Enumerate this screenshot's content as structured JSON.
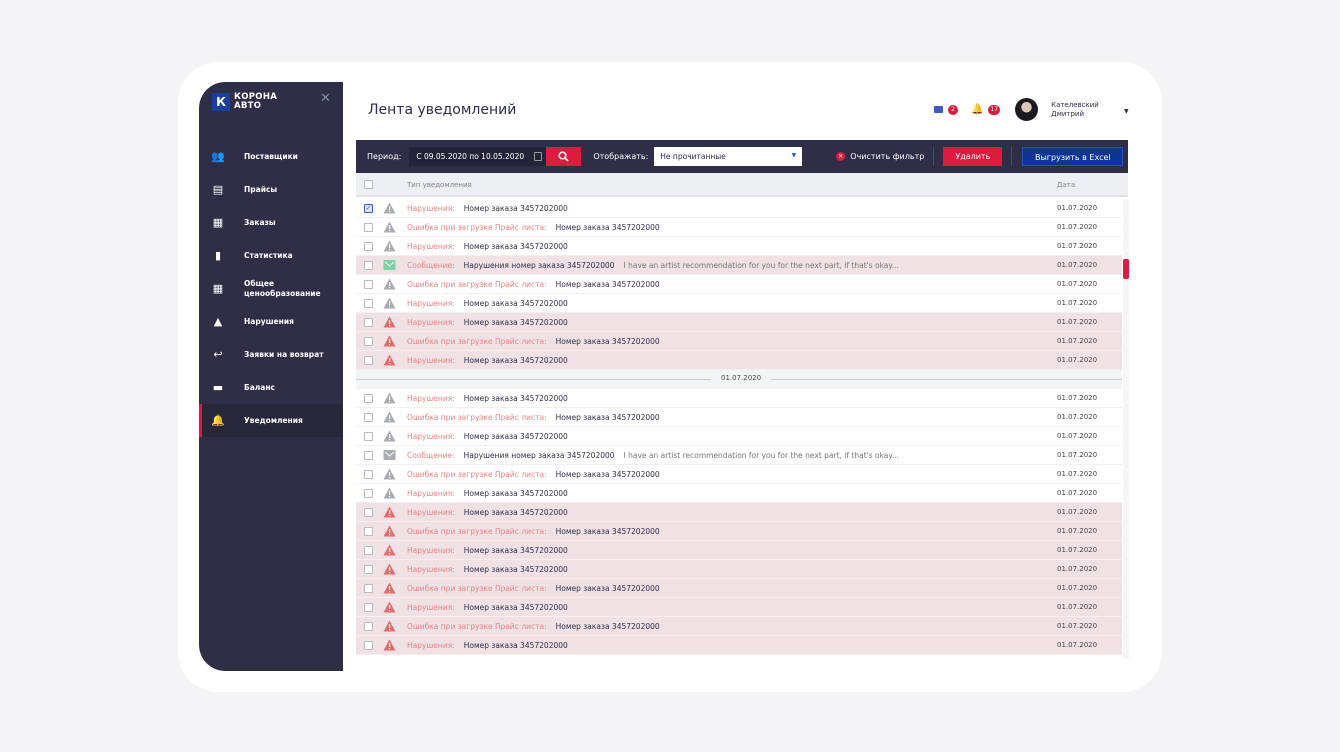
{
  "brand": {
    "logo_letter": "К",
    "name": "КОРОНА\nАВТО"
  },
  "sidebar": {
    "items": [
      {
        "label": "Поставщики",
        "icon": "users-icon",
        "glyph": "👥"
      },
      {
        "label": "Прайсы",
        "icon": "document-icon",
        "glyph": "▤"
      },
      {
        "label": "Заказы",
        "icon": "boxes-icon",
        "glyph": "▦"
      },
      {
        "label": "Статистика",
        "icon": "bar-chart-icon",
        "glyph": "▮"
      },
      {
        "label": "Общее\nценообразование",
        "icon": "grid-icon",
        "glyph": "▦"
      },
      {
        "label": "Нарушения",
        "icon": "warning-icon",
        "glyph": "▲"
      },
      {
        "label": "Заявки на возврат",
        "icon": "return-icon",
        "glyph": "↩"
      },
      {
        "label": "Баланс",
        "icon": "wallet-icon",
        "glyph": "▬"
      },
      {
        "label": "Уведомления",
        "icon": "bell-icon",
        "glyph": "🔔",
        "active": true
      }
    ]
  },
  "header": {
    "title": "Лента уведомлений",
    "mail_count": "2",
    "notif_count": "17",
    "user_name": "Кателевский\nДмитрий"
  },
  "toolbar": {
    "period_label": "Период:",
    "period_value": "С 09.05.2020 по 10.05.2020",
    "show_label": "Отображать:",
    "show_value": "Не прочитанные",
    "clear_label": "Очистить фильтр",
    "delete_label": "Удалить",
    "export_label": "Выгрузить в Excel"
  },
  "table": {
    "col_type": "Тип уведомления",
    "col_date": "Дата",
    "divider_date": "01.07.2020"
  },
  "colors": {
    "accent": "#e0193e",
    "sidebar": "#2e2f47",
    "primary": "#0e3496",
    "highlight_row": "#f0e1e4",
    "label": "#e98484"
  },
  "groups": [
    [
      {
        "label": "Нарушения:",
        "text": "Номер заказа 3457202000",
        "date": "01.07.2020",
        "icon": "warning-grey",
        "checked": true
      },
      {
        "label": "Ошибка при загрузке Прайс листа:",
        "text": "Номер заказа 3457202000",
        "date": "01.07.2020",
        "icon": "warning-grey"
      },
      {
        "label": "Нарушения:",
        "text": "Номер заказа 3457202000",
        "date": "01.07.2020",
        "icon": "warning-grey"
      },
      {
        "label": "Сообщение:",
        "text": "Нарушения номер заказа 3457202000",
        "extra": "I have an artist recommendation for you for the next part, if that's okay...",
        "date": "01.07.2020",
        "icon": "mail-green",
        "highlight": true
      },
      {
        "label": "Ошибка при загрузке Прайс листа:",
        "text": "Номер заказа 3457202000",
        "date": "01.07.2020",
        "icon": "warning-grey"
      },
      {
        "label": "Нарушения:",
        "text": "Номер заказа 3457202000",
        "date": "01.07.2020",
        "icon": "warning-grey"
      },
      {
        "label": "Нарушения:",
        "text": "Номер заказа 3457202000",
        "date": "01.07.2020",
        "icon": "warning-red",
        "highlight": true
      },
      {
        "label": "Ошибка при загрузке Прайс листа:",
        "text": "Номер заказа 3457202000",
        "date": "01.07.2020",
        "icon": "warning-red",
        "highlight": true
      },
      {
        "label": "Нарушения:",
        "text": "Номер заказа 3457202000",
        "date": "01.07.2020",
        "icon": "warning-red",
        "highlight": true
      }
    ],
    [
      {
        "label": "Нарушения:",
        "text": "Номер заказа 3457202000",
        "date": "01.07.2020",
        "icon": "warning-grey"
      },
      {
        "label": "Ошибка при загрузке Прайс листа:",
        "text": "Номер заказа 3457202000",
        "date": "01.07.2020",
        "icon": "warning-grey"
      },
      {
        "label": "Нарушения:",
        "text": "Номер заказа 3457202000",
        "date": "01.07.2020",
        "icon": "warning-grey"
      },
      {
        "label": "Сообщение:",
        "text": "Нарушения номер заказа 3457202000",
        "extra": "I have an artist recommendation for you for the next part, if that's okay...",
        "date": "01.07.2020",
        "icon": "mail-grey"
      },
      {
        "label": "Ошибка при загрузке Прайс листа:",
        "text": "Номер заказа 3457202000",
        "date": "01.07.2020",
        "icon": "warning-grey"
      },
      {
        "label": "Нарушения:",
        "text": "Номер заказа 3457202000",
        "date": "01.07.2020",
        "icon": "warning-grey"
      },
      {
        "label": "Нарушения:",
        "text": "Номер заказа 3457202000",
        "date": "01.07.2020",
        "icon": "warning-red",
        "highlight": true
      },
      {
        "label": "Ошибка при загрузке Прайс листа:",
        "text": "Номер заказа 3457202000",
        "date": "01.07.2020",
        "icon": "warning-red",
        "highlight": true
      },
      {
        "label": "Нарушения:",
        "text": "Номер заказа 3457202000",
        "date": "01.07.2020",
        "icon": "warning-red",
        "highlight": true
      },
      {
        "label": "Нарушения:",
        "text": "Номер заказа 3457202000",
        "date": "01.07.2020",
        "icon": "warning-red",
        "highlight": true
      },
      {
        "label": "Ошибка при загрузке Прайс листа:",
        "text": "Номер заказа 3457202000",
        "date": "01.07.2020",
        "icon": "warning-red",
        "highlight": true
      },
      {
        "label": "Нарушения:",
        "text": "Номер заказа 3457202000",
        "date": "01.07.2020",
        "icon": "warning-red",
        "highlight": true
      },
      {
        "label": "Ошибка при загрузке Прайс листа:",
        "text": "Номер заказа 3457202000",
        "date": "01.07.2020",
        "icon": "warning-red",
        "highlight": true
      },
      {
        "label": "Нарушения:",
        "text": "Номер заказа 3457202000",
        "date": "01.07.2020",
        "icon": "warning-red",
        "highlight": true
      }
    ]
  ]
}
